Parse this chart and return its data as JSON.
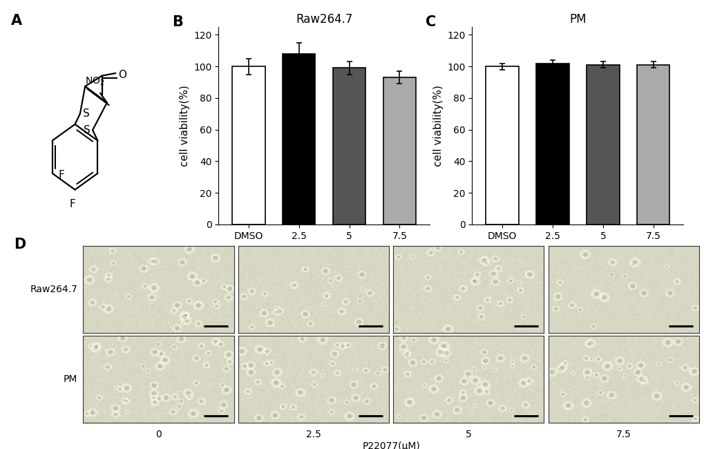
{
  "panel_B": {
    "title": "Raw264.7",
    "categories": [
      "DMSO",
      "2.5",
      "5",
      "7.5"
    ],
    "values": [
      100,
      108,
      99,
      93
    ],
    "errors": [
      5,
      7,
      4,
      4
    ],
    "bar_colors": [
      "#ffffff",
      "#000000",
      "#555555",
      "#aaaaaa"
    ],
    "bar_edgecolors": [
      "#000000",
      "#000000",
      "#000000",
      "#000000"
    ],
    "ylabel": "cell viability(%)",
    "xlabel_main": "P22077(μM)",
    "ylim": [
      0,
      125
    ],
    "yticks": [
      0,
      20,
      40,
      60,
      80,
      100,
      120
    ]
  },
  "panel_C": {
    "title": "PM",
    "categories": [
      "DMSO",
      "2.5",
      "5",
      "7.5"
    ],
    "values": [
      100,
      102,
      101,
      101
    ],
    "errors": [
      2,
      2,
      2,
      2
    ],
    "bar_colors": [
      "#ffffff",
      "#000000",
      "#555555",
      "#aaaaaa"
    ],
    "bar_edgecolors": [
      "#000000",
      "#000000",
      "#000000",
      "#000000"
    ],
    "ylabel": "cell viability(%)",
    "xlabel_main": "P22077(μM)",
    "ylim": [
      0,
      125
    ],
    "yticks": [
      0,
      20,
      40,
      60,
      80,
      100,
      120
    ]
  },
  "panel_D": {
    "row_labels": [
      "Raw264.7",
      "PM"
    ],
    "col_labels": [
      "0",
      "2.5",
      "5",
      "7.5"
    ],
    "bottom_label": "P22077(μM)"
  },
  "figure": {
    "bg_color": "#ffffff",
    "label_fontsize": 11,
    "tick_fontsize": 10,
    "title_fontsize": 12,
    "panel_label_fontsize": 15,
    "bar_width": 0.65
  }
}
